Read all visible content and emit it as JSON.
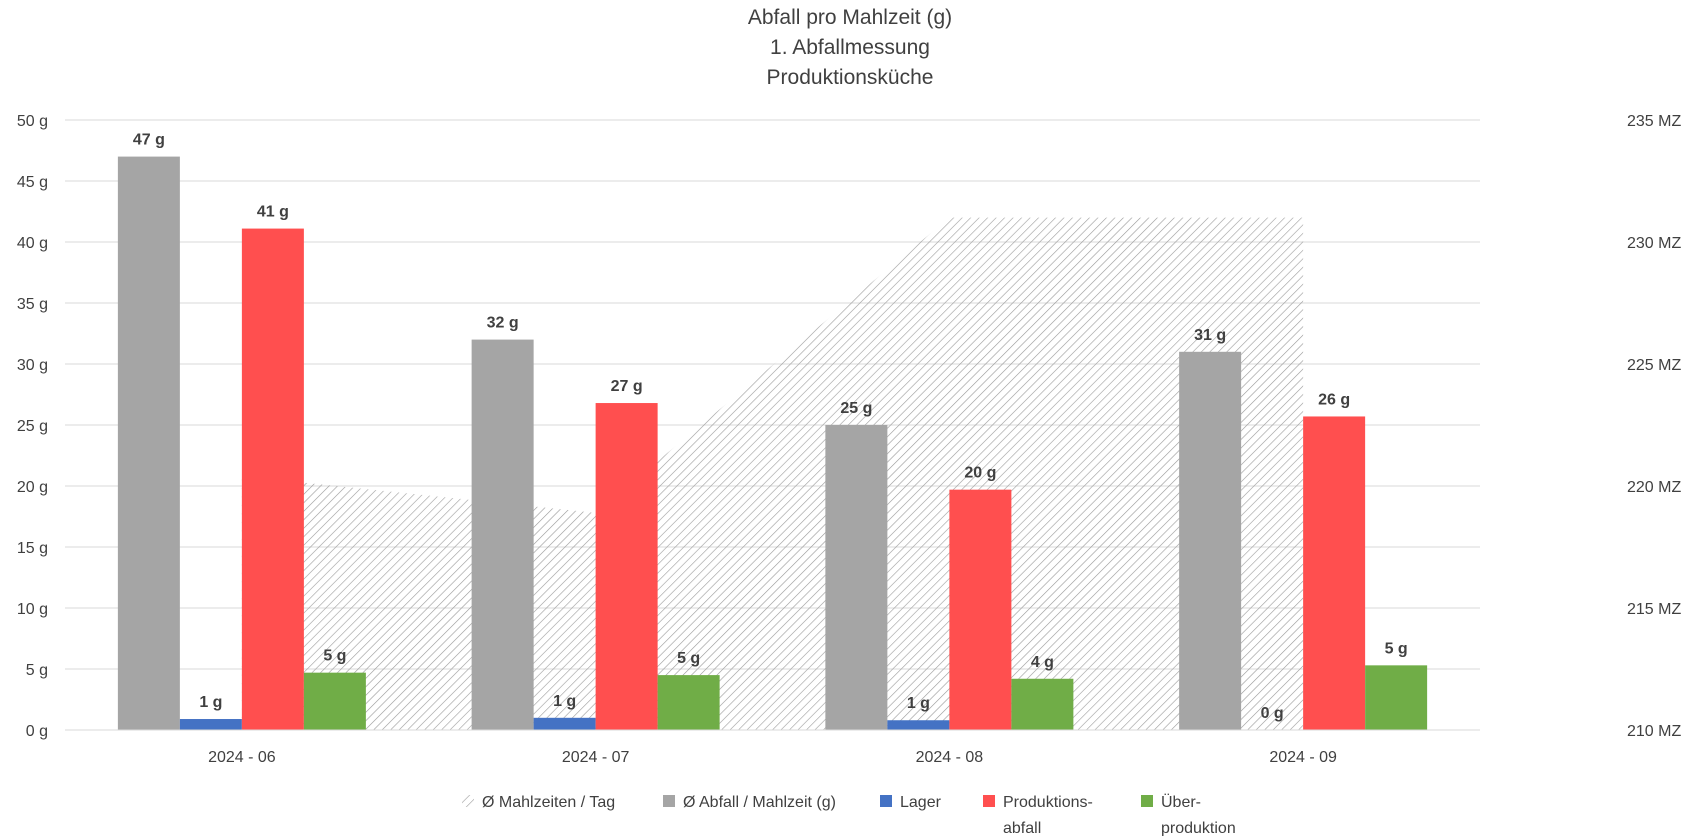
{
  "chart_data": {
    "type": "bar",
    "title": [
      "Abfall pro Mahlzeit (g)",
      "1. Abfallmessung",
      "Produktionsküche"
    ],
    "categories": [
      "2024 - 06",
      "2024 - 07",
      "2024 - 08",
      "2024 - 09"
    ],
    "y_axis_left": {
      "ylim": [
        0,
        50
      ],
      "ticks": [
        0,
        5,
        10,
        15,
        20,
        25,
        30,
        35,
        40,
        45,
        50
      ],
      "tick_labels": [
        "0 g",
        "5 g",
        "10 g",
        "15 g",
        "20 g",
        "25 g",
        "30 g",
        "35 g",
        "40 g",
        "45 g",
        "50 g"
      ]
    },
    "y_axis_right": {
      "ylim": [
        210,
        235
      ],
      "ticks": [
        210,
        215,
        220,
        225,
        230,
        235
      ],
      "tick_labels": [
        "210 MZ",
        "215 MZ",
        "220 MZ",
        "225 MZ",
        "230 MZ",
        "235 MZ"
      ]
    },
    "area_series": {
      "name": "Ø Mahlzeiten / Tag",
      "axis": "right",
      "values": [
        220.4,
        218.9,
        231.0,
        231.0
      ],
      "color": "#a6a6a6",
      "pattern": "diagonal-hatch"
    },
    "series": [
      {
        "name": "Ø Abfall / Mahlzeit (g)",
        "values": [
          47,
          32,
          25,
          31
        ],
        "labels": [
          "47 g",
          "32 g",
          "25 g",
          "31 g"
        ],
        "color": "#a5a5a5"
      },
      {
        "name": "Lager",
        "values": [
          0.9,
          1.0,
          0.8,
          0
        ],
        "labels": [
          "1 g",
          "1 g",
          "1 g",
          "0 g"
        ],
        "color": "#4472c4"
      },
      {
        "name": "Produktions-abfall",
        "legend_lines": [
          "Produktions-",
          "abfall"
        ],
        "values": [
          41.1,
          26.8,
          19.7,
          25.7
        ],
        "labels": [
          "41 g",
          "27 g",
          "20 g",
          "26 g"
        ],
        "color": "#ff4f4f"
      },
      {
        "name": "Über-produktion",
        "legend_lines": [
          "Über-",
          "produktion"
        ],
        "values": [
          4.7,
          4.5,
          4.2,
          5.3
        ],
        "labels": [
          "5 g",
          "5 g",
          "4 g",
          "5 g"
        ],
        "color": "#70ad47"
      }
    ],
    "grid": true,
    "legend_position": "bottom"
  }
}
